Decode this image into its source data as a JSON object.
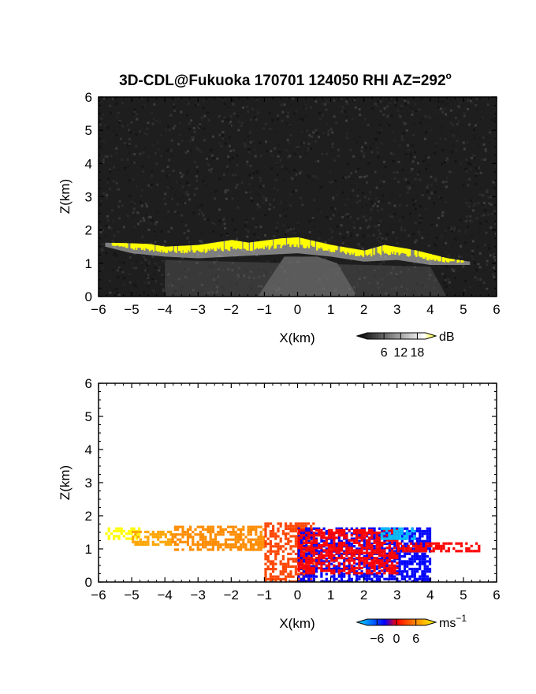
{
  "chart_data": [
    {
      "type": "heatmap",
      "title": "3D-CDL@Fukuoka 170701 124050 RHI AZ=292",
      "title_superscript": "o",
      "xlabel": "X(km)",
      "ylabel": "Z(km)",
      "xlim": [
        -6,
        6
      ],
      "ylim": [
        0,
        6
      ],
      "x_ticks": [
        "-6",
        "-5",
        "-4",
        "-3",
        "-2",
        "-1",
        "0",
        "1",
        "2",
        "3",
        "4",
        "5",
        "6"
      ],
      "y_ticks": [
        "0",
        "1",
        "2",
        "3",
        "4",
        "5",
        "6"
      ],
      "background": "dark gray noise",
      "colorbar": {
        "unit": "dB",
        "ticks": [
          "6",
          "12",
          "18"
        ],
        "range": [
          0,
          21
        ],
        "colors": [
          "#000000",
          "#ffffff",
          "#ffff00"
        ]
      },
      "echo_layer": {
        "value_db": 20,
        "color": "#ffff00",
        "top_km": [
          {
            "x": -5.8,
            "z": 1.62
          },
          {
            "x": -5.0,
            "z": 1.6
          },
          {
            "x": -4.5,
            "z": 1.58
          },
          {
            "x": -4.0,
            "z": 1.5
          },
          {
            "x": -3.0,
            "z": 1.55
          },
          {
            "x": -2.0,
            "z": 1.7
          },
          {
            "x": -1.5,
            "z": 1.62
          },
          {
            "x": -0.5,
            "z": 1.75
          },
          {
            "x": 0.0,
            "z": 1.78
          },
          {
            "x": 1.0,
            "z": 1.55
          },
          {
            "x": 2.0,
            "z": 1.38
          },
          {
            "x": 2.6,
            "z": 1.55
          },
          {
            "x": 3.5,
            "z": 1.4
          },
          {
            "x": 4.5,
            "z": 1.15
          },
          {
            "x": 5.2,
            "z": 1.05
          }
        ],
        "bottom_km": [
          {
            "x": -5.8,
            "z": 1.5
          },
          {
            "x": -5.0,
            "z": 1.3
          },
          {
            "x": -4.0,
            "z": 1.2
          },
          {
            "x": -3.0,
            "z": 1.15
          },
          {
            "x": -2.0,
            "z": 1.2
          },
          {
            "x": -1.0,
            "z": 1.25
          },
          {
            "x": 0.0,
            "z": 1.3
          },
          {
            "x": 1.0,
            "z": 1.2
          },
          {
            "x": 2.0,
            "z": 1.05
          },
          {
            "x": 3.0,
            "z": 1.1
          },
          {
            "x": 4.0,
            "z": 0.95
          },
          {
            "x": 5.2,
            "z": 0.95
          }
        ]
      }
    },
    {
      "type": "heatmap",
      "title": "",
      "xlabel": "X(km)",
      "ylabel": "Z(km)",
      "xlim": [
        -6,
        6
      ],
      "ylim": [
        0,
        6
      ],
      "x_ticks": [
        "-6",
        "-5",
        "-4",
        "-3",
        "-2",
        "-1",
        "0",
        "1",
        "2",
        "3",
        "4",
        "5",
        "6"
      ],
      "y_ticks": [
        "0",
        "1",
        "2",
        "3",
        "4",
        "5",
        "6"
      ],
      "colorbar": {
        "unit": "ms",
        "unit_superscript": "−1",
        "ticks": [
          "−6",
          "0",
          "6"
        ],
        "range": [
          -9,
          9
        ],
        "colors": [
          "#00e5ff",
          "#0000ff",
          "#ff0000",
          "#ffff00"
        ]
      },
      "velocity_regions": [
        {
          "x_range": [
            -5.8,
            -4.8
          ],
          "z_range": [
            1.3,
            1.65
          ],
          "velocity_ms": 8,
          "color": "#ffff00"
        },
        {
          "x_range": [
            -5.0,
            -3.8
          ],
          "z_range": [
            1.15,
            1.55
          ],
          "velocity_ms": 6,
          "color": "#ffa500"
        },
        {
          "x_range": [
            -3.8,
            -1.0
          ],
          "z_range": [
            1.0,
            1.7
          ],
          "velocity_ms": 5,
          "color": "#ff8c00"
        },
        {
          "x_range": [
            -1.0,
            0.5
          ],
          "z_range": [
            0.0,
            1.8
          ],
          "velocity_ms": 3,
          "color": "#ff4500"
        },
        {
          "x_range": [
            0.0,
            4.0
          ],
          "z_range": [
            0.0,
            1.65
          ],
          "velocity_ms": -5,
          "color": "#0000ff"
        },
        {
          "x_range": [
            0.0,
            3.0
          ],
          "z_range": [
            0.3,
            1.6
          ],
          "velocity_ms": 1,
          "color": "#ff0000"
        },
        {
          "x_range": [
            3.0,
            5.5
          ],
          "z_range": [
            0.95,
            1.2
          ],
          "velocity_ms": 1,
          "color": "#ff0000"
        },
        {
          "x_range": [
            2.5,
            3.5
          ],
          "z_range": [
            1.3,
            1.65
          ],
          "velocity_ms": -7,
          "color": "#00bfff"
        }
      ]
    }
  ]
}
